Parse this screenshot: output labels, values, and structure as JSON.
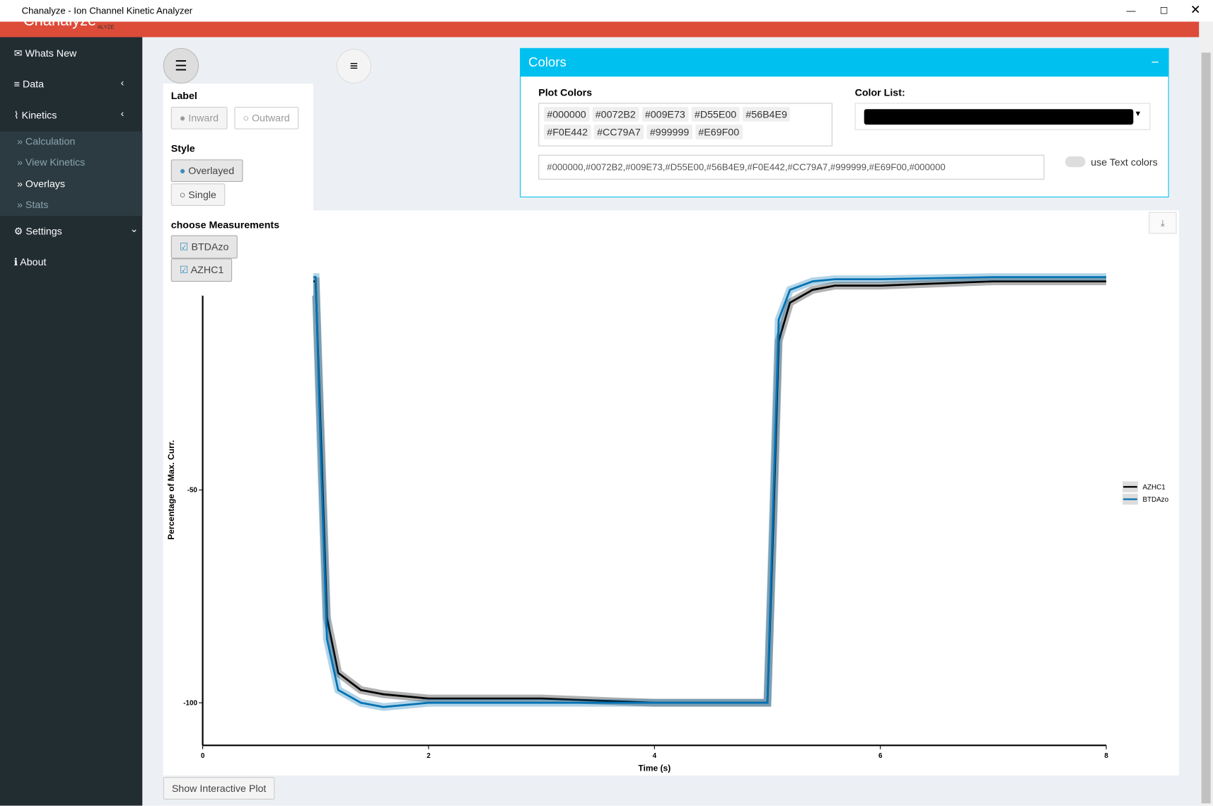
{
  "window": {
    "title": "Chanalyze - Ion Channel Kinetic Analyzer"
  },
  "header": {
    "logo": "Chanalyze",
    "logo_sub": "ALYZE"
  },
  "sidebar": {
    "whats_new": "Whats New",
    "data": "Data",
    "kinetics": "Kinetics",
    "kinetics_items": [
      "Calculation",
      "View Kinetics",
      "Overlays",
      "Stats"
    ],
    "settings": "Settings",
    "about": "About"
  },
  "options_panel": {
    "label_heading": "Label",
    "label_options": [
      "Inward",
      "Outward"
    ],
    "style_heading": "Style",
    "style_options": [
      "Overlayed",
      "Single"
    ],
    "measurements_heading": "choose Measurements",
    "measurements": [
      "BTDAzo",
      "AZHC1"
    ]
  },
  "colors_box": {
    "title": "Colors",
    "plot_colors_label": "Plot Colors",
    "plot_colors": [
      "#000000",
      "#0072B2",
      "#009E73",
      "#D55E00",
      "#56B4E9",
      "#F0E442",
      "#CC79A7",
      "#999999",
      "#E69F00"
    ],
    "color_list_label": "Color List:",
    "text_input": "#000000,#0072B2,#009E73,#D55E00,#56B4E9,#F0E442,#CC79A7,#999999,#E69F00,#000000",
    "toggle_label": "use Text colors"
  },
  "chart": {
    "type": "line",
    "x_label": "Time (s)",
    "y_label": "Percentage of Max. Curr.",
    "x": [
      0,
      1.0,
      1.05,
      1.1,
      1.2,
      1.4,
      1.6,
      2,
      3,
      4,
      4.9,
      5.0,
      5.05,
      5.1,
      5.2,
      5.4,
      5.6,
      6,
      7,
      8
    ],
    "series": [
      {
        "name": "AZHC1",
        "color": "#000000",
        "values": [
          -1,
          -1,
          -40,
          -80,
          -93,
          -97,
          -98,
          -99,
          -99,
          -100,
          -100,
          -100,
          -60,
          -15,
          -6,
          -3,
          -2,
          -2,
          -1,
          -1
        ]
      },
      {
        "name": "BTDAzo",
        "color": "#0072B2",
        "values": [
          0,
          0,
          -45,
          -85,
          -97,
          -100,
          -101,
          -100,
          -100,
          -100,
          -100,
          -100,
          -55,
          -10,
          -3,
          -1,
          -0.5,
          -0.5,
          0,
          0
        ]
      }
    ],
    "xlim": [
      0,
      8
    ],
    "xticks": [
      0,
      2,
      4,
      6,
      8
    ],
    "ylim": [
      -110,
      12
    ],
    "yticks": [
      -50,
      -100
    ]
  },
  "button": "Show Interactive Plot"
}
